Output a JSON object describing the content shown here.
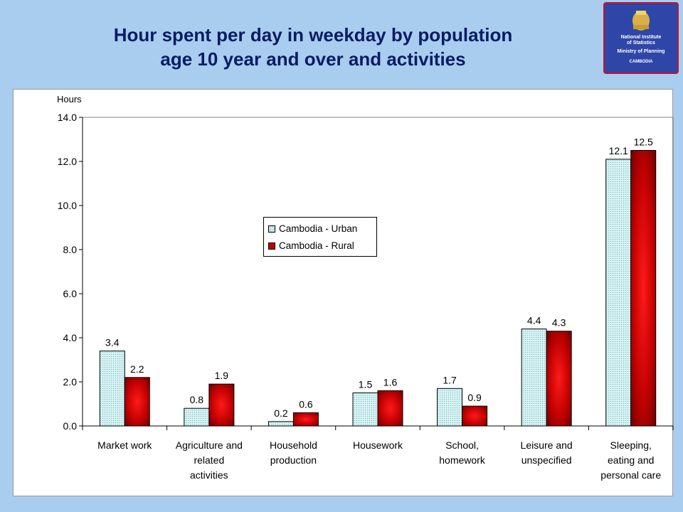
{
  "slide": {
    "title_line1": "Hour spent per day in weekday by population",
    "title_line2": "age 10 year and over and activities"
  },
  "logo": {
    "line1": "National Institute",
    "line2": "of Statistics",
    "line3": "Ministry of Planning",
    "line4": "CAMBODIA"
  },
  "colors": {
    "urban_fill": "#cfeef0",
    "rural_fill": "#c00000",
    "rural_dark": "#6e0000"
  },
  "chart_data": {
    "type": "bar",
    "ylabel": "Hours",
    "ylim": [
      0,
      14
    ],
    "yticks": [
      "0.0",
      "2.0",
      "4.0",
      "6.0",
      "8.0",
      "10.0",
      "12.0",
      "14.0"
    ],
    "categories": [
      [
        "Market work"
      ],
      [
        "Agriculture and",
        "related",
        "activities"
      ],
      [
        "Household",
        "production"
      ],
      [
        "Housework"
      ],
      [
        "School,",
        "homework"
      ],
      [
        "Leisure and",
        "unspecified"
      ],
      [
        "Sleeping,",
        "eating and",
        "personal care"
      ]
    ],
    "series": [
      {
        "name": "Cambodia - Urban",
        "values": [
          3.4,
          0.8,
          0.2,
          1.5,
          1.7,
          4.4,
          12.1
        ]
      },
      {
        "name": "Cambodia - Rural",
        "values": [
          2.2,
          1.9,
          0.6,
          1.6,
          0.9,
          4.3,
          12.5
        ]
      }
    ],
    "legend": "center"
  }
}
